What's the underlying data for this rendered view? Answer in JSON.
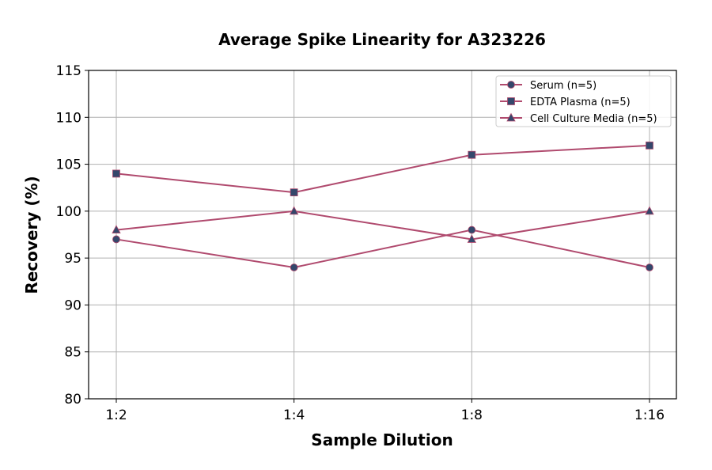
{
  "chart_data": {
    "type": "line",
    "title": "Average Spike Linearity for A323226",
    "xlabel": "Sample Dilution",
    "ylabel": "Recovery (%)",
    "categories": [
      "1:2",
      "1:4",
      "1:8",
      "1:16"
    ],
    "ylim": [
      80,
      115
    ],
    "yticks": [
      80,
      85,
      90,
      95,
      100,
      105,
      110,
      115
    ],
    "grid": true,
    "legend_position": "top-right",
    "line_color": "#b04a6e",
    "marker_color": "#34476b",
    "series": [
      {
        "name": "Serum (n=5)",
        "marker": "circle",
        "values": [
          97,
          94,
          98,
          94
        ]
      },
      {
        "name": "EDTA Plasma (n=5)",
        "marker": "square",
        "values": [
          104,
          102,
          106,
          107
        ]
      },
      {
        "name": "Cell Culture Media (n=5)",
        "marker": "triangle",
        "values": [
          98,
          100,
          97,
          100
        ]
      }
    ]
  }
}
